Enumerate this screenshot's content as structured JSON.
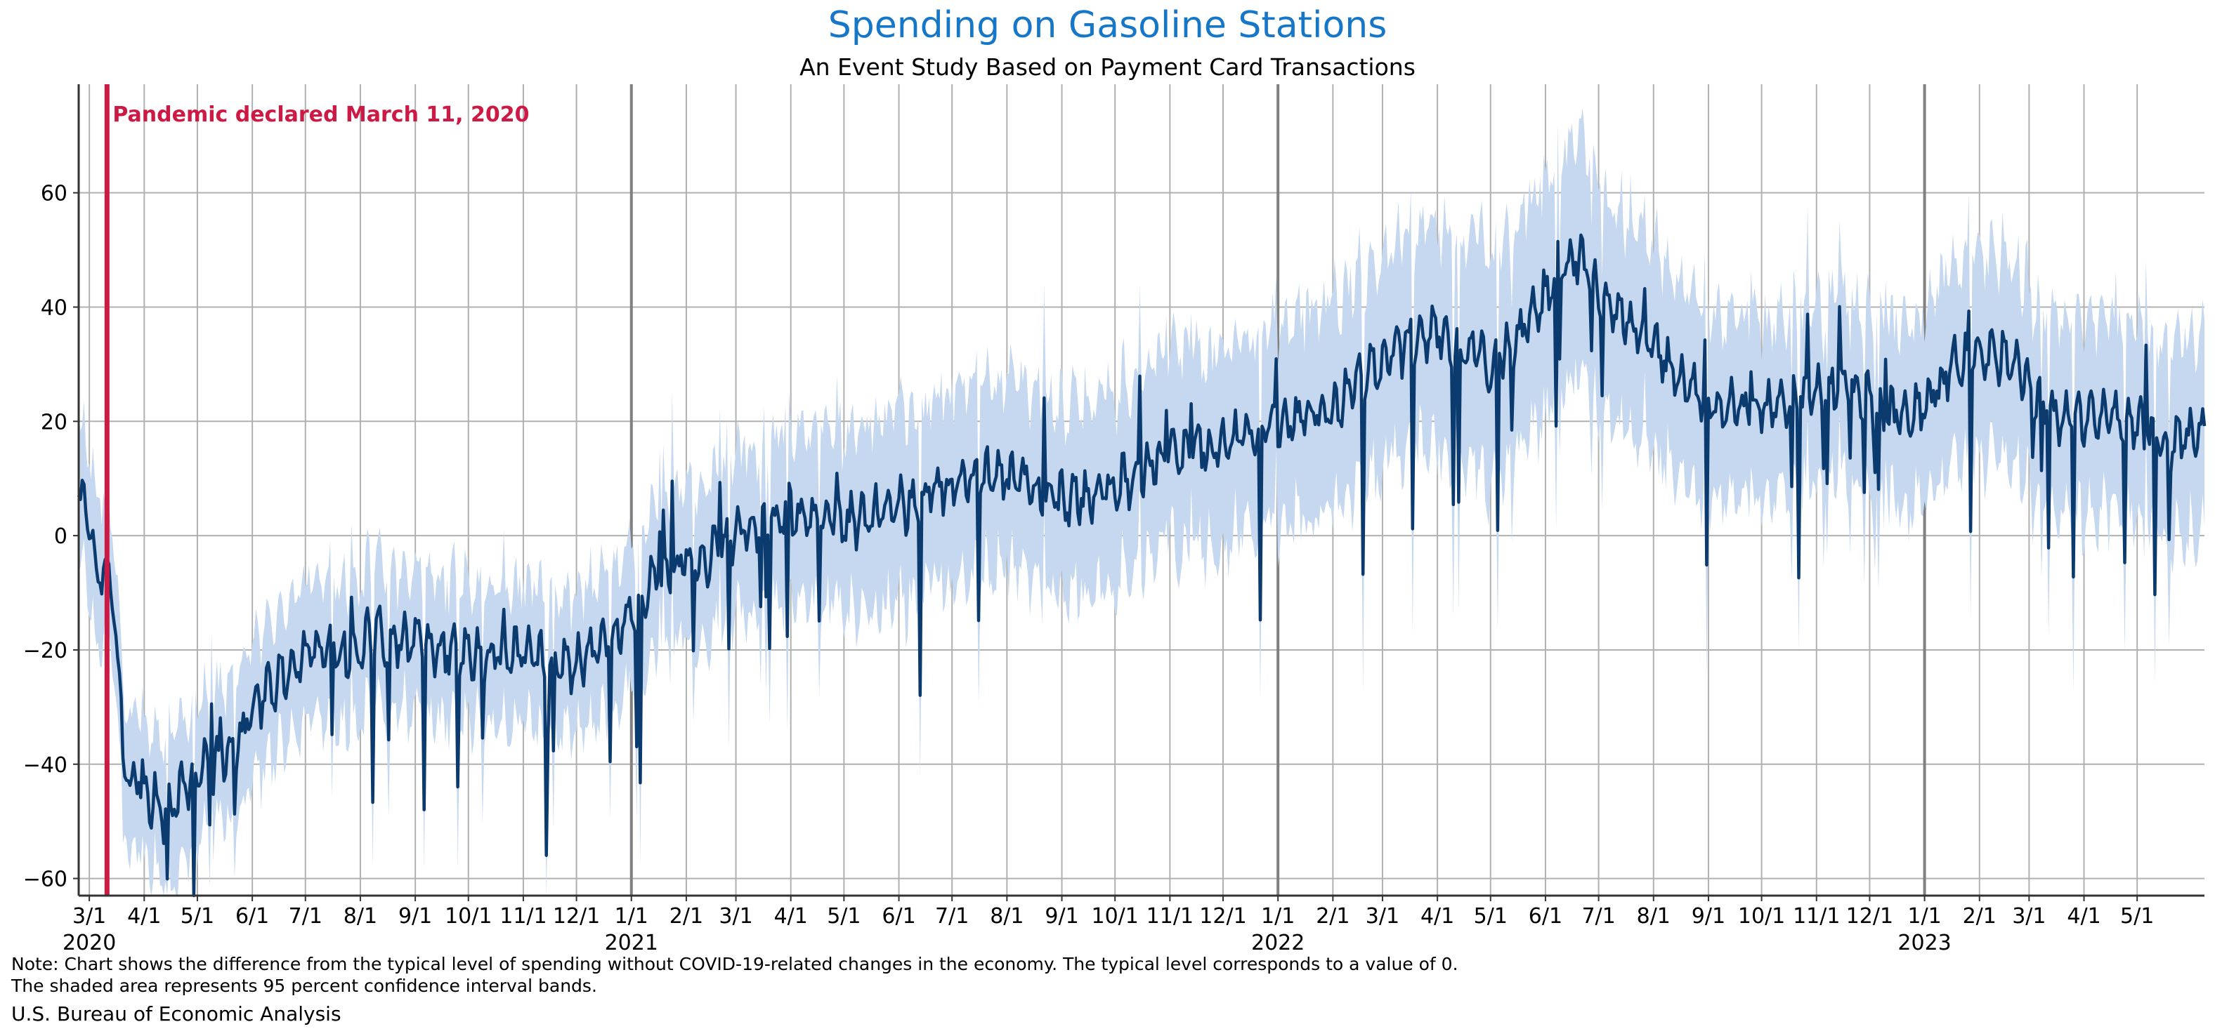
{
  "colors": {
    "title": "#1677c8",
    "line": "#0a3a6e",
    "band": "#c5d8ef",
    "event": "#cc1a45",
    "grid": "#b0b0b0",
    "year_divider": "#808080"
  },
  "chart_data": {
    "type": "line",
    "title": "Spending on Gasoline Stations",
    "subtitle": "An Event Study Based on Payment Card Transactions",
    "xlabel": "",
    "ylabel": "",
    "x_start": "2020-02-24",
    "x_end": "2023-06-08",
    "ylim": [
      -63,
      79
    ],
    "grid": true,
    "yticks": [
      -60,
      -40,
      -20,
      0,
      20,
      40,
      60
    ],
    "ytick_labels": [
      "−60",
      "−40",
      "−20",
      "0",
      "20",
      "40",
      "60"
    ],
    "xticks": [
      {
        "date": "2020-03-01",
        "label": "3/1"
      },
      {
        "date": "2020-04-01",
        "label": "4/1"
      },
      {
        "date": "2020-05-01",
        "label": "5/1"
      },
      {
        "date": "2020-06-01",
        "label": "6/1"
      },
      {
        "date": "2020-07-01",
        "label": "7/1"
      },
      {
        "date": "2020-08-01",
        "label": "8/1"
      },
      {
        "date": "2020-09-01",
        "label": "9/1"
      },
      {
        "date": "2020-10-01",
        "label": "10/1"
      },
      {
        "date": "2020-11-01",
        "label": "11/1"
      },
      {
        "date": "2020-12-01",
        "label": "12/1"
      },
      {
        "date": "2021-01-01",
        "label": "1/1"
      },
      {
        "date": "2021-02-01",
        "label": "2/1"
      },
      {
        "date": "2021-03-01",
        "label": "3/1"
      },
      {
        "date": "2021-04-01",
        "label": "4/1"
      },
      {
        "date": "2021-05-01",
        "label": "5/1"
      },
      {
        "date": "2021-06-01",
        "label": "6/1"
      },
      {
        "date": "2021-07-01",
        "label": "7/1"
      },
      {
        "date": "2021-08-01",
        "label": "8/1"
      },
      {
        "date": "2021-09-01",
        "label": "9/1"
      },
      {
        "date": "2021-10-01",
        "label": "10/1"
      },
      {
        "date": "2021-11-01",
        "label": "11/1"
      },
      {
        "date": "2021-12-01",
        "label": "12/1"
      },
      {
        "date": "2022-01-01",
        "label": "1/1"
      },
      {
        "date": "2022-02-01",
        "label": "2/1"
      },
      {
        "date": "2022-03-01",
        "label": "3/1"
      },
      {
        "date": "2022-04-01",
        "label": "4/1"
      },
      {
        "date": "2022-05-01",
        "label": "5/1"
      },
      {
        "date": "2022-06-01",
        "label": "6/1"
      },
      {
        "date": "2022-07-01",
        "label": "7/1"
      },
      {
        "date": "2022-08-01",
        "label": "8/1"
      },
      {
        "date": "2022-09-01",
        "label": "9/1"
      },
      {
        "date": "2022-10-01",
        "label": "10/1"
      },
      {
        "date": "2022-11-01",
        "label": "11/1"
      },
      {
        "date": "2022-12-01",
        "label": "12/1"
      },
      {
        "date": "2023-01-01",
        "label": "1/1"
      },
      {
        "date": "2023-02-01",
        "label": "2/1"
      },
      {
        "date": "2023-03-01",
        "label": "3/1"
      },
      {
        "date": "2023-04-01",
        "label": "4/1"
      },
      {
        "date": "2023-05-01",
        "label": "5/1"
      }
    ],
    "year_labels": [
      {
        "date": "2020-03-01",
        "label": "2020"
      },
      {
        "date": "2021-01-01",
        "label": "2021"
      },
      {
        "date": "2022-01-01",
        "label": "2022"
      },
      {
        "date": "2023-01-01",
        "label": "2023"
      }
    ],
    "year_dividers": [
      "2021-01-01",
      "2022-01-01",
      "2023-01-01"
    ],
    "event": {
      "date": "2020-03-11",
      "label": "Pandemic declared March 11, 2020"
    },
    "series": [
      {
        "type": "line",
        "points": [
          [
            "2020-02-24",
            5
          ],
          [
            "2020-02-27",
            8
          ],
          [
            "2020-03-01",
            2
          ],
          [
            "2020-03-04",
            -6
          ],
          [
            "2020-03-08",
            -6
          ],
          [
            "2020-03-11",
            -5
          ],
          [
            "2020-03-14",
            -10
          ],
          [
            "2020-03-17",
            -22
          ],
          [
            "2020-03-20",
            -36
          ],
          [
            "2020-03-24",
            -45
          ],
          [
            "2020-03-28",
            -42
          ],
          [
            "2020-04-01",
            -45
          ],
          [
            "2020-04-05",
            -47
          ],
          [
            "2020-04-08",
            -46
          ],
          [
            "2020-04-12",
            -49
          ],
          [
            "2020-04-15",
            -47
          ],
          [
            "2020-04-20",
            -46
          ],
          [
            "2020-04-25",
            -44
          ],
          [
            "2020-05-01",
            -42
          ],
          [
            "2020-05-06",
            -40
          ],
          [
            "2020-05-10",
            -41
          ],
          [
            "2020-05-16",
            -38
          ],
          [
            "2020-05-22",
            -37
          ],
          [
            "2020-06-01",
            -31
          ],
          [
            "2020-06-07",
            -28
          ],
          [
            "2020-06-14",
            -26
          ],
          [
            "2020-06-21",
            -23
          ],
          [
            "2020-07-01",
            -21
          ],
          [
            "2020-07-08",
            -20
          ],
          [
            "2020-07-15",
            -19
          ],
          [
            "2020-07-25",
            -21
          ],
          [
            "2020-08-01",
            -19
          ],
          [
            "2020-08-10",
            -17
          ],
          [
            "2020-08-20",
            -19
          ],
          [
            "2020-09-01",
            -18
          ],
          [
            "2020-09-10",
            -20
          ],
          [
            "2020-09-20",
            -20
          ],
          [
            "2020-10-01",
            -20
          ],
          [
            "2020-10-10",
            -22
          ],
          [
            "2020-10-20",
            -20
          ],
          [
            "2020-11-01",
            -21
          ],
          [
            "2020-11-10",
            -22
          ],
          [
            "2020-11-20",
            -23
          ],
          [
            "2020-12-01",
            -22
          ],
          [
            "2020-12-10",
            -20
          ],
          [
            "2020-12-20",
            -18
          ],
          [
            "2021-01-01",
            -14
          ],
          [
            "2021-01-10",
            -9
          ],
          [
            "2021-01-20",
            -6
          ],
          [
            "2021-02-01",
            -4
          ],
          [
            "2021-02-10",
            -5
          ],
          [
            "2021-02-20",
            -2
          ],
          [
            "2021-03-01",
            1
          ],
          [
            "2021-03-15",
            3
          ],
          [
            "2021-04-01",
            4
          ],
          [
            "2021-04-15",
            3
          ],
          [
            "2021-05-01",
            2
          ],
          [
            "2021-05-15",
            3
          ],
          [
            "2021-06-01",
            5
          ],
          [
            "2021-06-15",
            7
          ],
          [
            "2021-07-01",
            9
          ],
          [
            "2021-07-15",
            10
          ],
          [
            "2021-08-01",
            10
          ],
          [
            "2021-08-15",
            9
          ],
          [
            "2021-09-01",
            6
          ],
          [
            "2021-09-15",
            7
          ],
          [
            "2021-10-01",
            9
          ],
          [
            "2021-10-15",
            11
          ],
          [
            "2021-11-01",
            14
          ],
          [
            "2021-11-15",
            15
          ],
          [
            "2021-12-01",
            16
          ],
          [
            "2021-12-15",
            18
          ],
          [
            "2022-01-01",
            19
          ],
          [
            "2022-01-15",
            21
          ],
          [
            "2022-02-01",
            22
          ],
          [
            "2022-02-15",
            27
          ],
          [
            "2022-03-01",
            30
          ],
          [
            "2022-03-15",
            34
          ],
          [
            "2022-04-01",
            36
          ],
          [
            "2022-04-15",
            33
          ],
          [
            "2022-05-01",
            30
          ],
          [
            "2022-05-15",
            34
          ],
          [
            "2022-06-01",
            42
          ],
          [
            "2022-06-10",
            47
          ],
          [
            "2022-06-20",
            49
          ],
          [
            "2022-07-01",
            43
          ],
          [
            "2022-07-15",
            38
          ],
          [
            "2022-08-01",
            33
          ],
          [
            "2022-08-15",
            28
          ],
          [
            "2022-09-01",
            24
          ],
          [
            "2022-09-15",
            22
          ],
          [
            "2022-10-01",
            22
          ],
          [
            "2022-10-15",
            24
          ],
          [
            "2022-11-01",
            25
          ],
          [
            "2022-11-15",
            26
          ],
          [
            "2022-12-01",
            24
          ],
          [
            "2022-12-15",
            21
          ],
          [
            "2023-01-01",
            22
          ],
          [
            "2023-01-15",
            29
          ],
          [
            "2023-02-01",
            32
          ],
          [
            "2023-02-15",
            31
          ],
          [
            "2023-03-01",
            27
          ],
          [
            "2023-03-15",
            21
          ],
          [
            "2023-04-01",
            20
          ],
          [
            "2023-04-15",
            21
          ],
          [
            "2023-05-01",
            20
          ],
          [
            "2023-05-15",
            16
          ],
          [
            "2023-06-01",
            17
          ],
          [
            "2023-06-08",
            18
          ]
        ]
      },
      {
        "type": "band",
        "description_pct": "95 percent confidence interval",
        "half_width_points": [
          [
            "2020-02-24",
            12
          ],
          [
            "2020-06-01",
            12
          ],
          [
            "2020-12-01",
            12
          ],
          [
            "2021-03-01",
            14
          ],
          [
            "2021-06-01",
            16
          ],
          [
            "2021-09-01",
            16
          ],
          [
            "2022-01-01",
            17
          ],
          [
            "2022-04-01",
            19
          ],
          [
            "2022-06-15",
            20
          ],
          [
            "2022-09-01",
            16
          ],
          [
            "2022-12-01",
            15
          ],
          [
            "2023-02-01",
            17
          ],
          [
            "2023-06-08",
            17
          ]
        ]
      }
    ]
  },
  "footer": {
    "note_line1": "Note: Chart shows the difference from the typical level of spending without COVID-19-related changes in the economy. The typical level corresponds to a value of 0.",
    "note_line2": "The shaded area represents 95 percent confidence interval bands.",
    "source": "U.S. Bureau of Economic Analysis"
  }
}
